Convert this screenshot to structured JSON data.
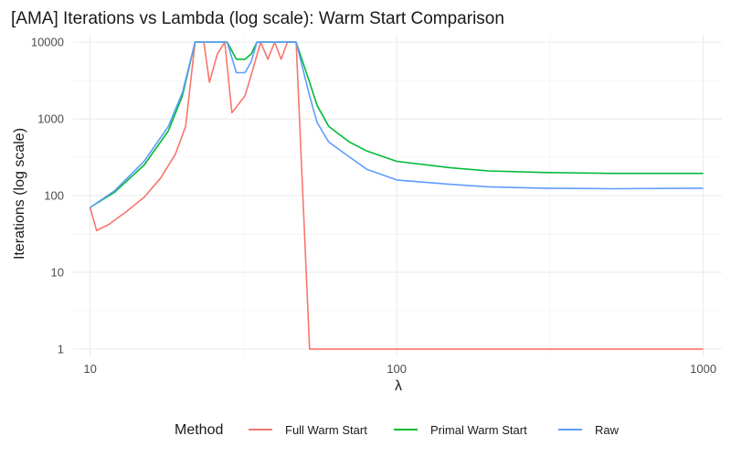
{
  "chart_data": {
    "type": "line",
    "title": "[AMA] Iterations vs Lambda (log scale): Warm Start Comparison",
    "xlabel": "λ",
    "ylabel": "Iterations (log scale)",
    "x_scale": "log",
    "y_scale": "log",
    "xlim": [
      8.8,
      1150
    ],
    "ylim": [
      0.8,
      12500
    ],
    "x_ticks": [
      10,
      100,
      1000
    ],
    "x_tick_labels": [
      "10",
      "100",
      "1000"
    ],
    "y_ticks": [
      1,
      10,
      100,
      1000,
      10000
    ],
    "y_tick_labels": [
      "1",
      "10",
      "100",
      "1000",
      "10000"
    ],
    "grid": true,
    "legend": {
      "title": "Method",
      "position": "bottom"
    },
    "colors": {
      "Full Warm Start": "#F8766D",
      "Primal Warm Start": "#00BA38",
      "Raw": "#619CFF"
    },
    "series": [
      {
        "name": "Full Warm Start",
        "points": [
          [
            10,
            70
          ],
          [
            10.5,
            35
          ],
          [
            11.5,
            42
          ],
          [
            13,
            60
          ],
          [
            15,
            95
          ],
          [
            17,
            170
          ],
          [
            19,
            350
          ],
          [
            20.5,
            800
          ],
          [
            22,
            10000
          ],
          [
            23.5,
            10000
          ],
          [
            24.5,
            3000
          ],
          [
            26,
            7000
          ],
          [
            27.5,
            10000
          ],
          [
            29,
            1200
          ],
          [
            32,
            2000
          ],
          [
            33,
            3000
          ],
          [
            36,
            10000
          ],
          [
            38,
            6000
          ],
          [
            40,
            10000
          ],
          [
            42,
            6000
          ],
          [
            44,
            10000
          ],
          [
            47,
            10000
          ],
          [
            52,
            1
          ],
          [
            100,
            1
          ],
          [
            1000,
            1
          ]
        ]
      },
      {
        "name": "Primal Warm Start",
        "points": [
          [
            10,
            70
          ],
          [
            12,
            110
          ],
          [
            15,
            250
          ],
          [
            18,
            700
          ],
          [
            20,
            2000
          ],
          [
            22,
            10000
          ],
          [
            25,
            10000
          ],
          [
            28,
            10000
          ],
          [
            30,
            6000
          ],
          [
            32,
            6000
          ],
          [
            33.5,
            7000
          ],
          [
            35,
            10000
          ],
          [
            40,
            10000
          ],
          [
            47,
            10000
          ],
          [
            52,
            3000
          ],
          [
            55,
            1500
          ],
          [
            60,
            800
          ],
          [
            70,
            500
          ],
          [
            80,
            380
          ],
          [
            100,
            280
          ],
          [
            150,
            230
          ],
          [
            200,
            210
          ],
          [
            300,
            200
          ],
          [
            500,
            195
          ],
          [
            1000,
            195
          ]
        ]
      },
      {
        "name": "Raw",
        "points": [
          [
            10,
            70
          ],
          [
            12,
            115
          ],
          [
            15,
            280
          ],
          [
            18,
            800
          ],
          [
            20,
            2200
          ],
          [
            22,
            10000
          ],
          [
            25,
            10000
          ],
          [
            28,
            10000
          ],
          [
            30,
            4000
          ],
          [
            32,
            4000
          ],
          [
            33.5,
            5500
          ],
          [
            35,
            10000
          ],
          [
            40,
            10000
          ],
          [
            47,
            10000
          ],
          [
            52,
            2000
          ],
          [
            55,
            900
          ],
          [
            60,
            500
          ],
          [
            70,
            320
          ],
          [
            80,
            220
          ],
          [
            100,
            160
          ],
          [
            150,
            140
          ],
          [
            200,
            130
          ],
          [
            300,
            125
          ],
          [
            500,
            123
          ],
          [
            1000,
            125
          ]
        ]
      }
    ]
  }
}
